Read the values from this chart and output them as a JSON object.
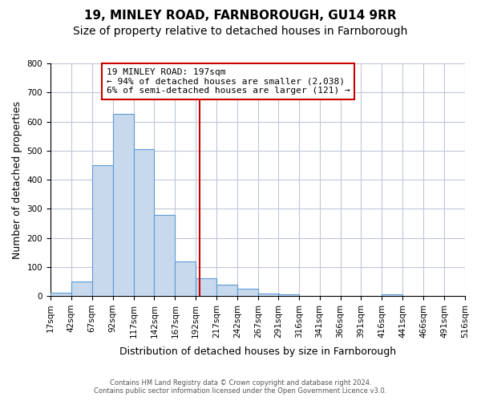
{
  "title": "19, MINLEY ROAD, FARNBOROUGH, GU14 9RR",
  "subtitle": "Size of property relative to detached houses in Farnborough",
  "xlabel": "Distribution of detached houses by size in Farnborough",
  "ylabel": "Number of detached properties",
  "footnote1": "Contains HM Land Registry data © Crown copyright and database right 2024.",
  "footnote2": "Contains public sector information licensed under the Open Government Licence v3.0.",
  "bar_edges": [
    17,
    42,
    67,
    92,
    117,
    142,
    167,
    192,
    217,
    242,
    267,
    291,
    316,
    341,
    366,
    391,
    416,
    441,
    466,
    491,
    516
  ],
  "bar_heights": [
    12,
    50,
    450,
    625,
    505,
    280,
    118,
    62,
    40,
    25,
    8,
    5,
    0,
    0,
    0,
    0,
    5,
    0,
    0,
    0
  ],
  "bar_color": "#c8d9ed",
  "bar_edge_color": "#5b9bd5",
  "vline_x": 197,
  "vline_color": "#cc0000",
  "annotation_line1": "19 MINLEY ROAD: 197sqm",
  "annotation_line2": "← 94% of detached houses are smaller (2,038)",
  "annotation_line3": "6% of semi-detached houses are larger (121) →",
  "ylim": [
    0,
    800
  ],
  "yticks": [
    0,
    100,
    200,
    300,
    400,
    500,
    600,
    700,
    800
  ],
  "background_color": "#ffffff",
  "grid_color": "#c0c8d8",
  "title_fontsize": 11,
  "subtitle_fontsize": 10,
  "tick_label_fontsize": 7.5,
  "axis_label_fontsize": 9
}
